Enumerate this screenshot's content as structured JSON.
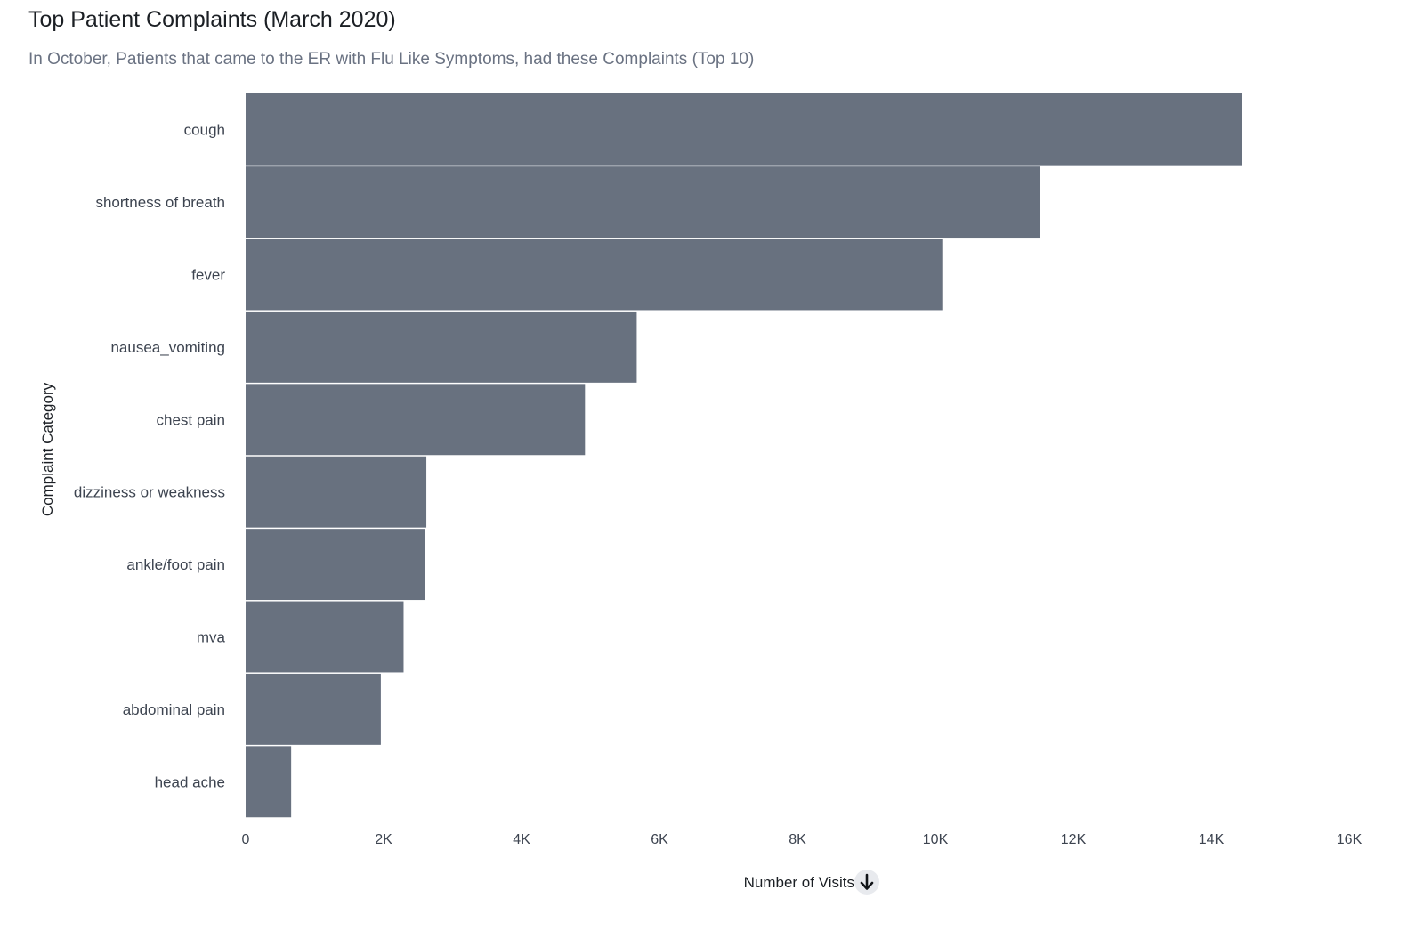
{
  "header": {
    "title": "Top Patient Complaints (March 2020)",
    "subtitle": "In October, Patients that came to the ER with Flu Like Symptoms, had these Complaints (Top 10)"
  },
  "colors": {
    "bar": "#68717f",
    "axis_text": "#3d4450",
    "label_text": "#1b1f24",
    "sort_button_bg": "#e8eaee"
  },
  "sort_icon": "arrow-down-icon",
  "chart_data": {
    "type": "bar",
    "orientation": "horizontal",
    "xlabel": "Number of Visits",
    "ylabel": "Complaint Category",
    "xlim": [
      0,
      16000
    ],
    "x_ticks": [
      0,
      2000,
      4000,
      6000,
      8000,
      10000,
      12000,
      14000,
      16000
    ],
    "x_tick_labels": [
      "0",
      "2K",
      "4K",
      "6K",
      "8K",
      "10K",
      "12K",
      "14K",
      "16K"
    ],
    "grid": false,
    "categories": [
      "cough",
      "shortness of breath",
      "fever",
      "nausea_vomiting",
      "chest pain",
      "dizziness or weakness",
      "ankle/foot pain",
      "mva",
      "abdominal pain",
      "head ache"
    ],
    "values": [
      14450,
      11520,
      10100,
      5670,
      4920,
      2620,
      2600,
      2290,
      1960,
      660
    ]
  }
}
